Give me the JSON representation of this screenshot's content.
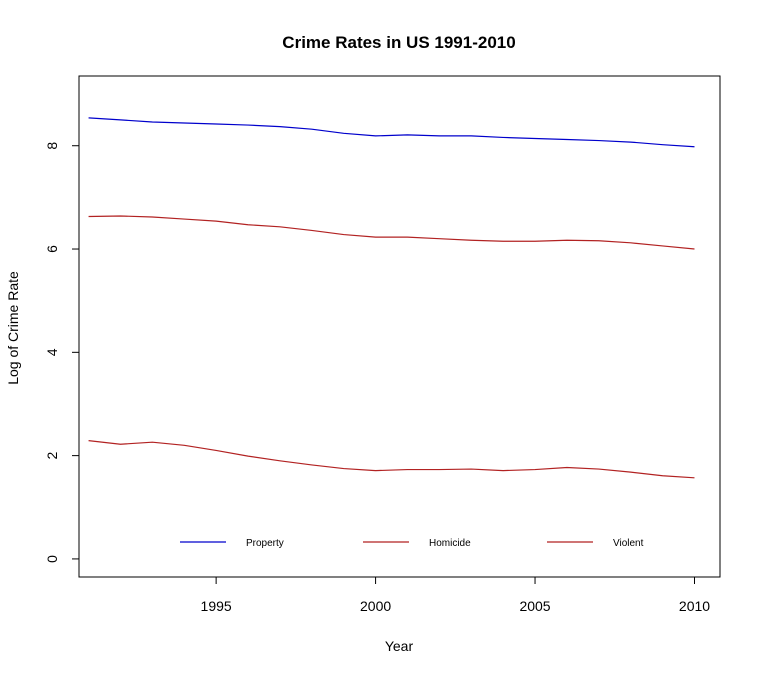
{
  "chart_data": {
    "type": "line",
    "title": "Crime Rates in US 1991-2010",
    "xlabel": "Year",
    "ylabel": "Log of Crime Rate",
    "xlim": [
      1990.7,
      2010.8
    ],
    "ylim": [
      -0.35,
      9.35
    ],
    "x_ticks": [
      1995,
      2000,
      2005,
      2010
    ],
    "y_ticks": [
      0,
      2,
      4,
      6,
      8
    ],
    "grid": false,
    "legend_placement": "bottom",
    "x": [
      1991,
      1992,
      1993,
      1994,
      1995,
      1996,
      1997,
      1998,
      1999,
      2000,
      2001,
      2002,
      2003,
      2004,
      2005,
      2006,
      2007,
      2008,
      2009,
      2010
    ],
    "series": [
      {
        "name": "Property",
        "color": "#0000cc",
        "values": [
          8.54,
          8.5,
          8.46,
          8.44,
          8.42,
          8.4,
          8.37,
          8.32,
          8.24,
          8.19,
          8.21,
          8.19,
          8.19,
          8.16,
          8.14,
          8.12,
          8.1,
          8.07,
          8.02,
          7.98
        ]
      },
      {
        "name": "Homicide",
        "color": "#b22222",
        "values": [
          2.29,
          2.22,
          2.26,
          2.2,
          2.1,
          1.99,
          1.9,
          1.82,
          1.75,
          1.71,
          1.73,
          1.73,
          1.74,
          1.71,
          1.73,
          1.77,
          1.74,
          1.68,
          1.61,
          1.57
        ]
      },
      {
        "name": "Violent",
        "color": "#b22222",
        "values": [
          6.63,
          6.64,
          6.62,
          6.58,
          6.54,
          6.47,
          6.43,
          6.36,
          6.28,
          6.23,
          6.23,
          6.2,
          6.17,
          6.15,
          6.15,
          6.17,
          6.16,
          6.12,
          6.06,
          6.0
        ]
      }
    ]
  }
}
